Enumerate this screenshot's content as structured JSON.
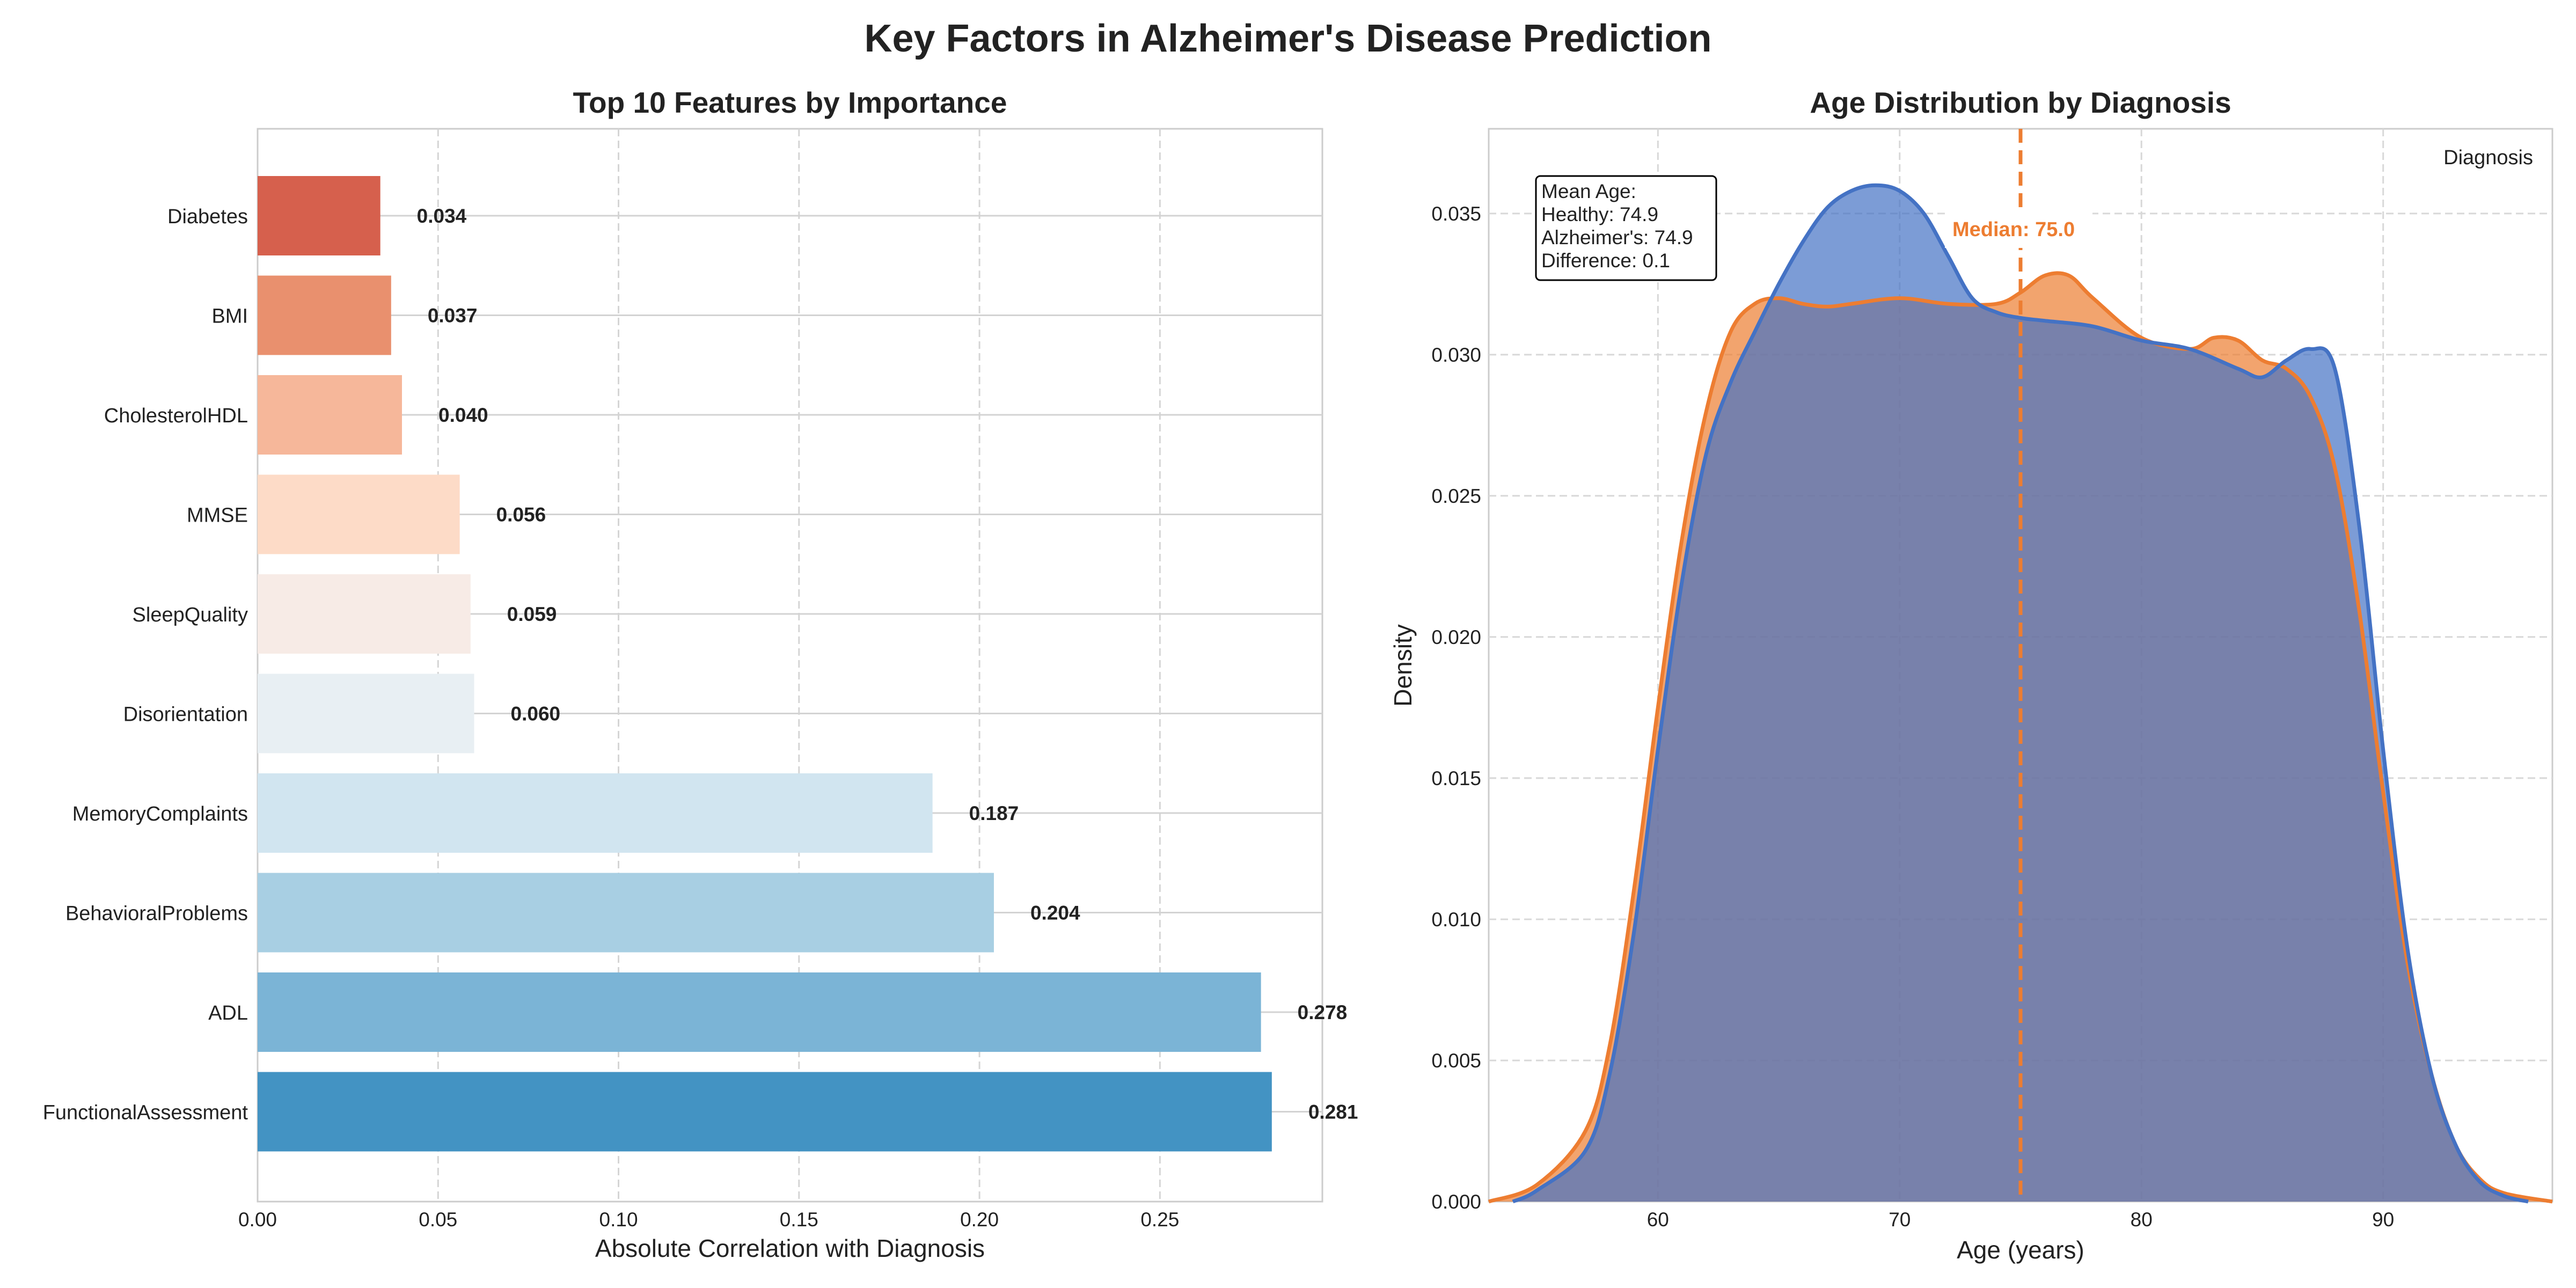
{
  "figure": {
    "title": "Key Factors in Alzheimer's Disease Prediction"
  },
  "chart_data": [
    {
      "type": "bar",
      "orientation": "horizontal",
      "title": "Top 10 Features by Importance",
      "xlabel": "Absolute Correlation with Diagnosis",
      "ylabel": "",
      "xlim": [
        0.0,
        0.295
      ],
      "xticks": [
        "0.00",
        "0.05",
        "0.10",
        "0.15",
        "0.20",
        "0.25"
      ],
      "categories": [
        "Diabetes",
        "BMI",
        "CholesterolHDL",
        "MMSE",
        "SleepQuality",
        "Disorientation",
        "MemoryComplaints",
        "BehavioralProblems",
        "ADL",
        "FunctionalAssessment"
      ],
      "values": [
        0.034,
        0.037,
        0.04,
        0.056,
        0.059,
        0.06,
        0.187,
        0.204,
        0.278,
        0.281
      ],
      "value_labels": [
        "0.034",
        "0.037",
        "0.040",
        "0.056",
        "0.059",
        "0.060",
        "0.187",
        "0.204",
        "0.278",
        "0.281"
      ],
      "colors": [
        "#d6604d",
        "#e9906e",
        "#f6b79a",
        "#fddbc7",
        "#f7ebe6",
        "#e8eff3",
        "#d1e5f0",
        "#a8cfe3",
        "#7bb4d6",
        "#4393c3"
      ],
      "grid": true
    },
    {
      "type": "area",
      "subtype": "kde",
      "title": "Age Distribution by Diagnosis",
      "xlabel": "Age (years)",
      "ylabel": "Density",
      "xlim": [
        53,
        97
      ],
      "ylim": [
        0.0,
        0.038
      ],
      "xticks": [
        "60",
        "70",
        "80",
        "90"
      ],
      "yticks": [
        "0.000",
        "0.005",
        "0.010",
        "0.015",
        "0.020",
        "0.025",
        "0.030",
        "0.035"
      ],
      "legend_title": "Diagnosis",
      "legend_position": "top-right",
      "grid": true,
      "series": [
        {
          "color": "#ed7d31",
          "x": [
            53,
            55,
            57,
            58,
            59,
            60,
            61,
            62,
            63,
            64,
            65,
            66,
            67,
            68,
            70,
            72,
            74,
            75,
            76,
            77,
            78,
            80,
            82,
            83,
            84,
            85,
            86,
            87,
            88,
            89,
            90,
            91,
            92,
            93,
            94,
            95,
            97
          ],
          "y": [
            0.0,
            0.0006,
            0.0025,
            0.0055,
            0.011,
            0.0175,
            0.0235,
            0.028,
            0.0308,
            0.0318,
            0.032,
            0.0318,
            0.0317,
            0.0318,
            0.032,
            0.0318,
            0.0318,
            0.0322,
            0.0328,
            0.0328,
            0.032,
            0.0306,
            0.0302,
            0.0306,
            0.0305,
            0.0298,
            0.0295,
            0.0285,
            0.026,
            0.021,
            0.0145,
            0.0085,
            0.0045,
            0.002,
            0.0008,
            0.0003,
            0.0
          ]
        },
        {
          "color": "#4472c4",
          "x": [
            54,
            55,
            57,
            58,
            59,
            60,
            61,
            62,
            63,
            64,
            65,
            66,
            67,
            68,
            69,
            70,
            71,
            72,
            73,
            74,
            75,
            76,
            78,
            80,
            82,
            84,
            85,
            86,
            87,
            88,
            89,
            90,
            91,
            92,
            93,
            94,
            95,
            96
          ],
          "y": [
            0.0,
            0.0004,
            0.0018,
            0.0045,
            0.0095,
            0.016,
            0.022,
            0.0265,
            0.029,
            0.0308,
            0.0325,
            0.034,
            0.0352,
            0.0358,
            0.036,
            0.0358,
            0.035,
            0.0335,
            0.032,
            0.0315,
            0.0313,
            0.0312,
            0.031,
            0.0305,
            0.0302,
            0.0295,
            0.0292,
            0.0298,
            0.0302,
            0.0295,
            0.024,
            0.016,
            0.009,
            0.0045,
            0.002,
            0.0007,
            0.0002,
            0.0
          ]
        }
      ],
      "median": {
        "value": 75.0,
        "color": "#ed7d31",
        "label": "Median: 75.0"
      },
      "stats_box": [
        "Mean Age:",
        "Healthy: 74.9",
        "Alzheimer's: 74.9",
        "Difference: 0.1"
      ]
    }
  ]
}
